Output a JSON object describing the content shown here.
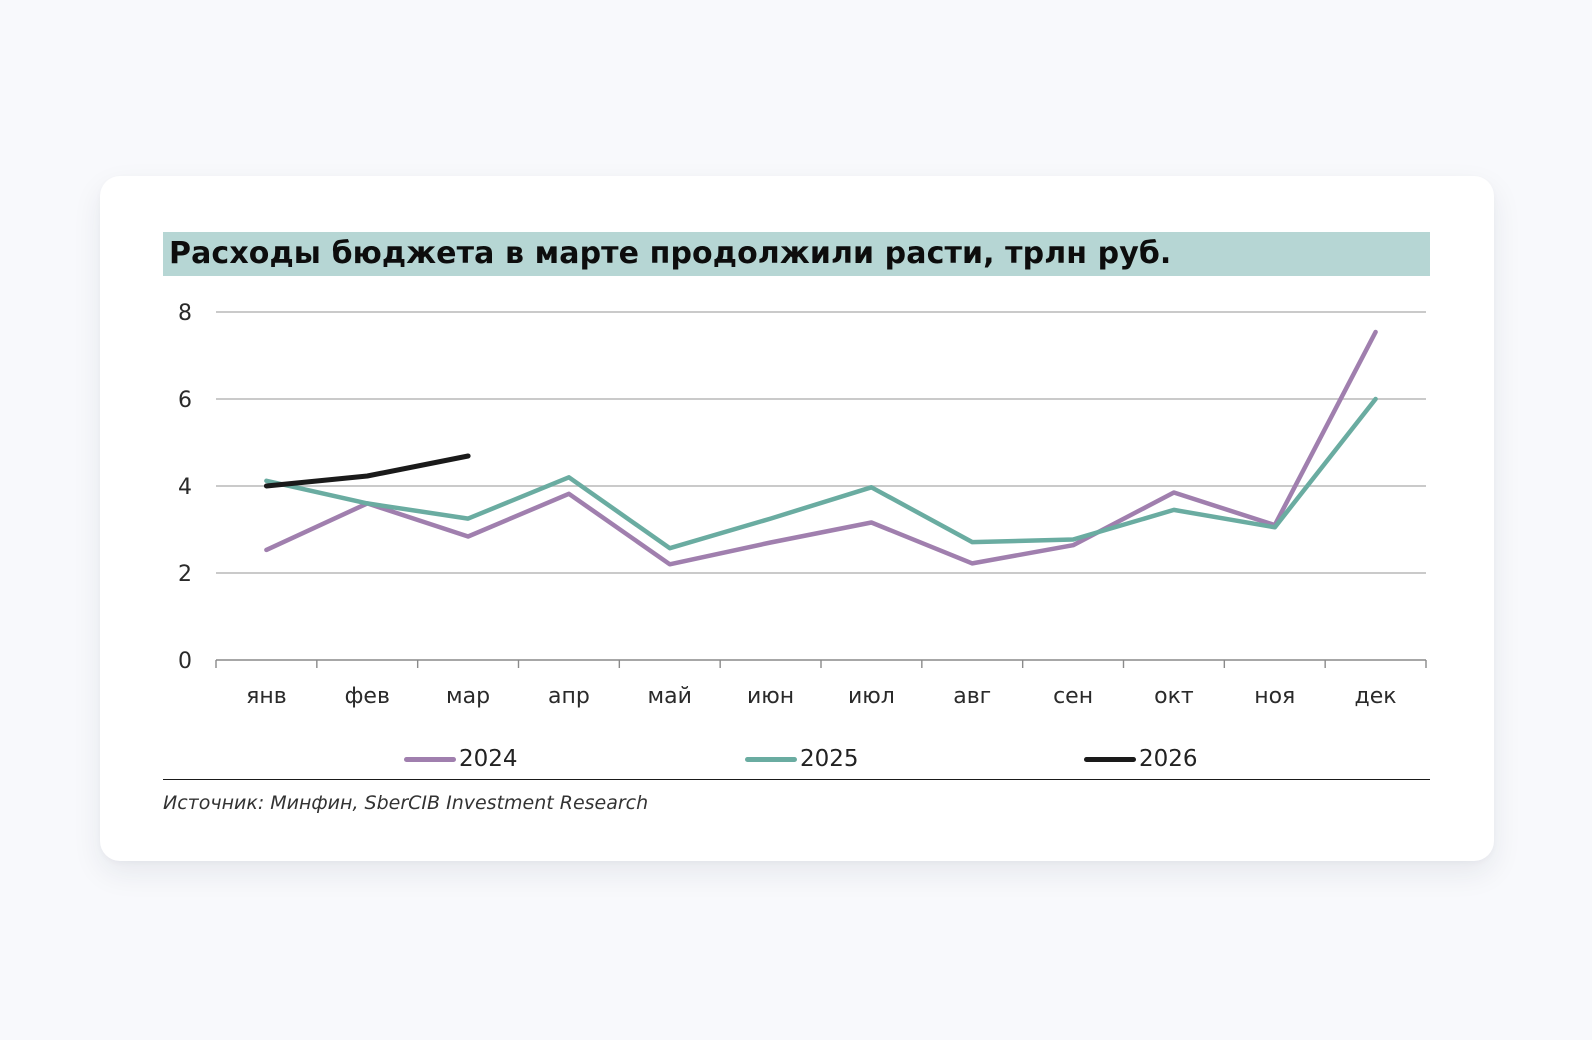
{
  "card": {
    "title": "Расходы бюджета в марте продолжили расти, трлн руб.",
    "source": "Источник: Минфин, SberCIB Investment Research"
  },
  "colors": {
    "background": "#f8f9fc",
    "title_bar": "#b6d6d4",
    "series_2024": "#a07fae",
    "series_2025": "#6aaca1",
    "series_2026": "#1a1a1a",
    "gridline": "#b8b8b8"
  },
  "legend": [
    {
      "label": "2024",
      "color": "#a07fae"
    },
    {
      "label": "2025",
      "color": "#6aaca1"
    },
    {
      "label": "2026",
      "color": "#1a1a1a"
    }
  ],
  "chart_data": {
    "type": "line",
    "title": "Расходы бюджета в марте продолжили расти, трлн руб.",
    "xlabel": "",
    "ylabel": "трлн руб.",
    "categories": [
      "янв",
      "фев",
      "мар",
      "апр",
      "май",
      "июн",
      "июл",
      "авг",
      "сен",
      "окт",
      "ноя",
      "дек"
    ],
    "yticks": [
      0,
      2,
      4,
      6,
      8
    ],
    "ylim": [
      0,
      8
    ],
    "grid": true,
    "legend_position": "bottom",
    "series": [
      {
        "name": "2024",
        "color": "#a07fae",
        "values": [
          2.53,
          3.6,
          2.84,
          3.82,
          2.2,
          2.7,
          3.16,
          2.22,
          2.64,
          3.85,
          3.1,
          7.54
        ]
      },
      {
        "name": "2025",
        "color": "#6aaca1",
        "values": [
          4.12,
          3.6,
          3.25,
          4.2,
          2.57,
          3.25,
          3.97,
          2.71,
          2.77,
          3.45,
          3.05,
          6.0
        ]
      },
      {
        "name": "2026",
        "color": "#1a1a1a",
        "values": [
          4.0,
          4.23,
          4.69,
          null,
          null,
          null,
          null,
          null,
          null,
          null,
          null,
          null
        ]
      }
    ],
    "source": "Источник: Минфин, SberCIB Investment Research"
  }
}
